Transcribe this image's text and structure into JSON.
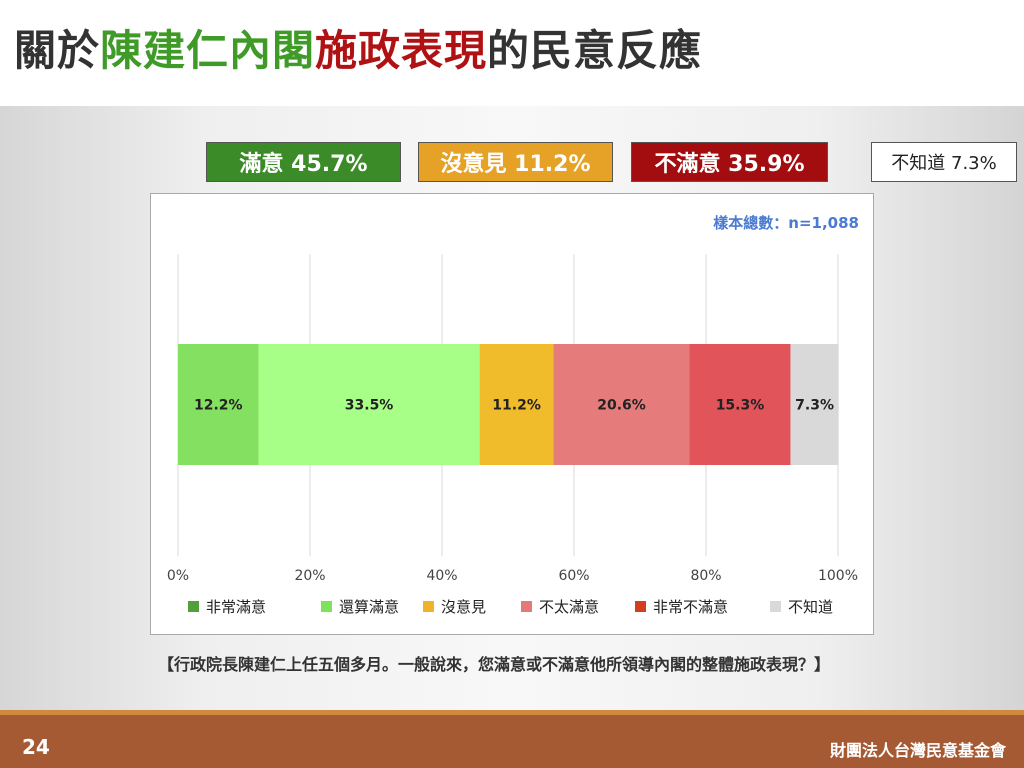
{
  "title": {
    "part1": "關於",
    "part2": "陳建仁內閣",
    "part3": "施政表現",
    "part4": "的民意反應",
    "colors": {
      "part1": "#333333",
      "part2": "#3f9a28",
      "part3": "#b01214",
      "part4": "#333333"
    }
  },
  "summary": {
    "satisfied": "滿意 45.7%",
    "no_opinion": "沒意見 11.2%",
    "dissatisfied": "不滿意 35.9%",
    "dont_know": "不知道 7.3%"
  },
  "sample_note": "樣本總數：n=1,088",
  "chart_data": {
    "type": "bar",
    "orientation": "horizontal-stacked",
    "title": "",
    "xlabel": "",
    "ylabel": "",
    "x_ticks": [
      "0%",
      "20%",
      "40%",
      "60%",
      "80%",
      "100%"
    ],
    "xlim": [
      0,
      100
    ],
    "grid": true,
    "legend_position": "bottom",
    "series": [
      {
        "name": "非常滿意",
        "value": 12.2,
        "label": "12.2%",
        "color": "#84e061",
        "legend_color": "#52a03a"
      },
      {
        "name": "還算滿意",
        "value": 33.5,
        "label": "33.5%",
        "color": "#a8ff88",
        "legend_color": "#7ce35a"
      },
      {
        "name": "沒意見",
        "value": 11.2,
        "label": "11.2%",
        "color": "#f1bc2c",
        "legend_color": "#efb32a"
      },
      {
        "name": "不太滿意",
        "value": 20.6,
        "label": "20.6%",
        "color": "#e57c7b",
        "legend_color": "#e57878"
      },
      {
        "name": "非常不滿意",
        "value": 15.3,
        "label": "15.3%",
        "color": "#e0545a",
        "legend_color": "#d63d1e"
      },
      {
        "name": "不知道",
        "value": 7.3,
        "label": "7.3%",
        "color": "#d9d9d9",
        "legend_color": "#d9d9d9"
      }
    ]
  },
  "question": "【行政院長陳建仁上任五個多月。一般說來，您滿意或不滿意他所領導內閣的整體施政表現？】",
  "footer": {
    "page_number": "24",
    "organization": "財團法人台灣民意基金會"
  }
}
